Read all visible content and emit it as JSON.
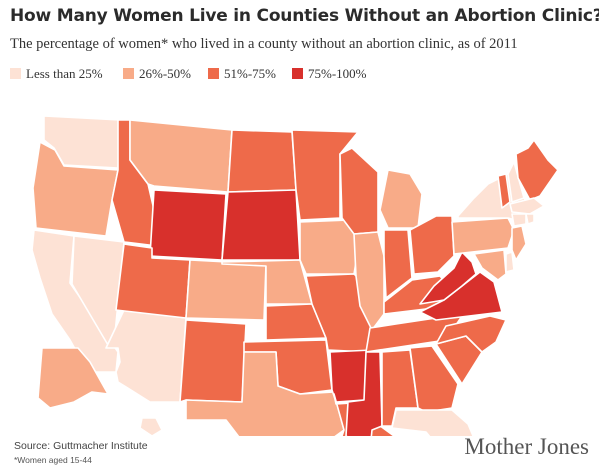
{
  "title": "How Many Women Live in Counties Without an Abortion Clinic?",
  "subtitle": "The percentage of women* who lived in a county without an abortion clinic, as of 2011",
  "legend": [
    {
      "label": "Less than 25%",
      "color": "#fde2d5"
    },
    {
      "label": "26%-50%",
      "color": "#f8ab88"
    },
    {
      "label": "51%-75%",
      "color": "#ee6a4a"
    },
    {
      "label": "75%-100%",
      "color": "#d8302c"
    }
  ],
  "source": "Source: Guttmacher Institute",
  "footnote": "*Women aged 15-44",
  "brand": "Mother Jones",
  "map_data": {
    "category_colors": [
      "#fde2d5",
      "#f8ab88",
      "#ee6a4a",
      "#d8302c"
    ],
    "states": [
      {
        "code": "WA",
        "category": 0
      },
      {
        "code": "OR",
        "category": 1
      },
      {
        "code": "CA",
        "category": 0
      },
      {
        "code": "NV",
        "category": 0
      },
      {
        "code": "AZ",
        "category": 0
      },
      {
        "code": "ID",
        "category": 2
      },
      {
        "code": "MT",
        "category": 1
      },
      {
        "code": "WY",
        "category": 3
      },
      {
        "code": "UT",
        "category": 2
      },
      {
        "code": "CO",
        "category": 1
      },
      {
        "code": "NM",
        "category": 2
      },
      {
        "code": "ND",
        "category": 2
      },
      {
        "code": "SD",
        "category": 3
      },
      {
        "code": "NE",
        "category": 1
      },
      {
        "code": "KS",
        "category": 2
      },
      {
        "code": "OK",
        "category": 2
      },
      {
        "code": "TX",
        "category": 1
      },
      {
        "code": "MN",
        "category": 2
      },
      {
        "code": "IA",
        "category": 1
      },
      {
        "code": "MO",
        "category": 2
      },
      {
        "code": "AR",
        "category": 3
      },
      {
        "code": "LA",
        "category": 2
      },
      {
        "code": "WI",
        "category": 2
      },
      {
        "code": "IL",
        "category": 1
      },
      {
        "code": "MI",
        "category": 1
      },
      {
        "code": "IN",
        "category": 2
      },
      {
        "code": "OH",
        "category": 2
      },
      {
        "code": "KY",
        "category": 2
      },
      {
        "code": "TN",
        "category": 2
      },
      {
        "code": "MS",
        "category": 3
      },
      {
        "code": "AL",
        "category": 2
      },
      {
        "code": "GA",
        "category": 2
      },
      {
        "code": "FL",
        "category": 0
      },
      {
        "code": "SC",
        "category": 2
      },
      {
        "code": "NC",
        "category": 2
      },
      {
        "code": "VA",
        "category": 3
      },
      {
        "code": "WV",
        "category": 3
      },
      {
        "code": "PA",
        "category": 1
      },
      {
        "code": "NY",
        "category": 0
      },
      {
        "code": "VT",
        "category": 2
      },
      {
        "code": "NH",
        "category": 0
      },
      {
        "code": "ME",
        "category": 2
      },
      {
        "code": "MA",
        "category": 0
      },
      {
        "code": "CT",
        "category": 0
      },
      {
        "code": "RI",
        "category": 0
      },
      {
        "code": "NJ",
        "category": 1
      },
      {
        "code": "DE",
        "category": 0
      },
      {
        "code": "MD",
        "category": 1
      },
      {
        "code": "AK",
        "category": 1
      },
      {
        "code": "HI",
        "category": 0
      }
    ]
  }
}
